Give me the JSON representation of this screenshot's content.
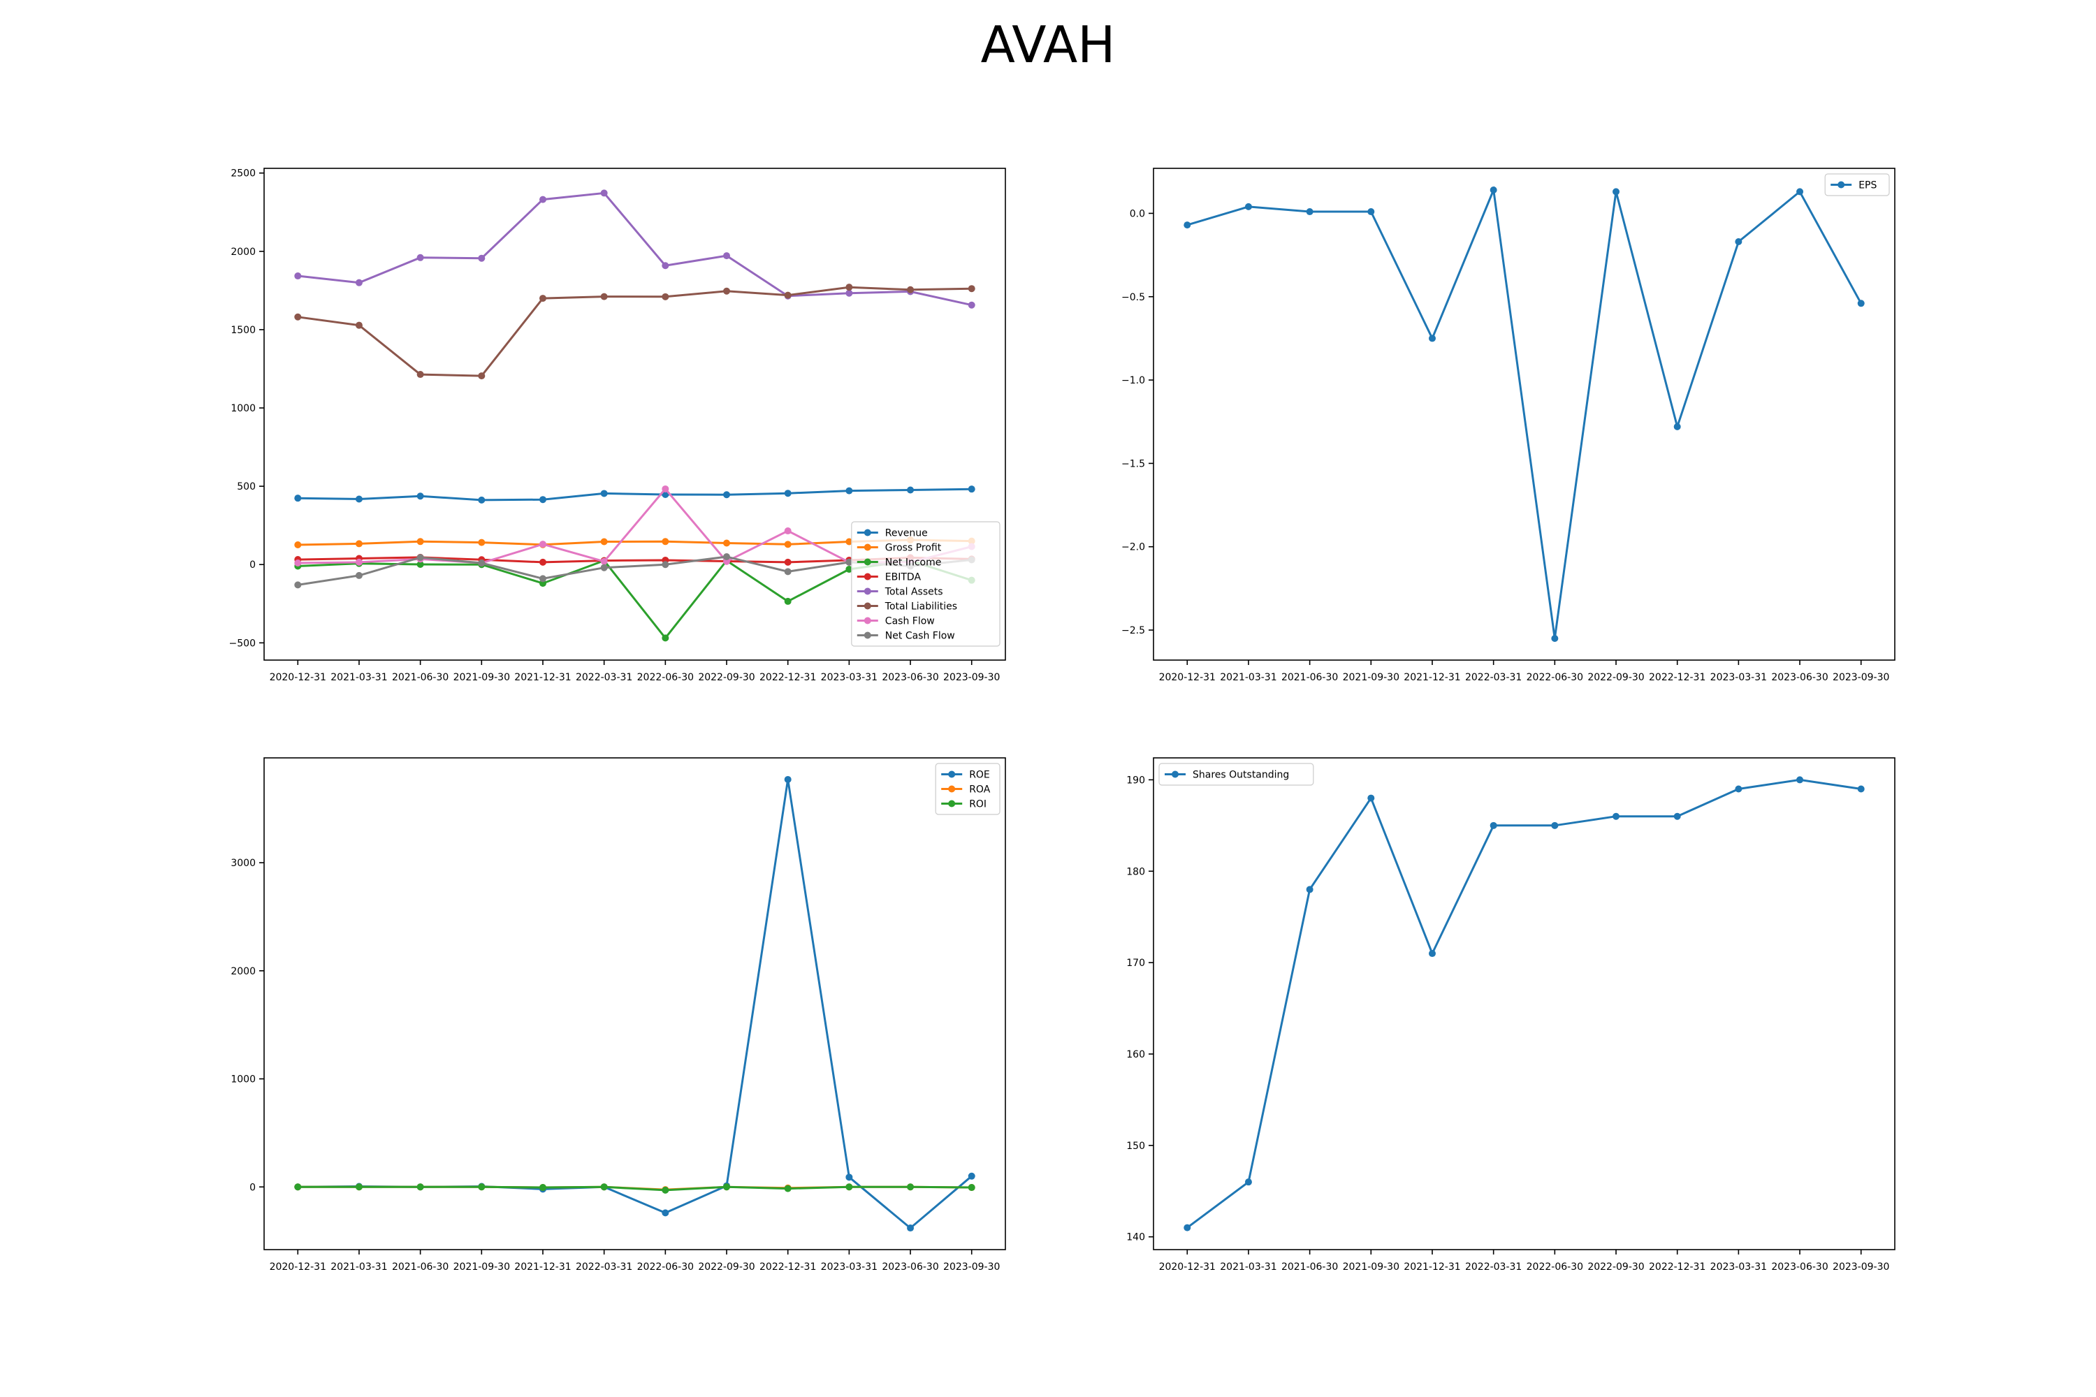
{
  "title": "AVAH",
  "colors": {
    "blue": "#1f77b4",
    "orange": "#ff7f0e",
    "green": "#2ca02c",
    "red": "#d62728",
    "purple": "#9467bd",
    "brown": "#8c564b",
    "pink": "#e377c2",
    "gray": "#7f7f7f"
  },
  "chart_data": [
    {
      "type": "line",
      "legend_position": "center-right",
      "x": [
        "2020-12-31",
        "2021-03-31",
        "2021-06-30",
        "2021-09-30",
        "2021-12-31",
        "2022-03-31",
        "2022-06-30",
        "2022-09-30",
        "2022-12-31",
        "2023-03-31",
        "2023-06-30",
        "2023-09-30"
      ],
      "ylim": [
        -610,
        2530
      ],
      "yticks": [
        -500,
        0,
        500,
        1000,
        1500,
        2000,
        2500
      ],
      "ytick_labels": [
        "−500",
        "0",
        "500",
        "1000",
        "1500",
        "2000",
        "2500"
      ],
      "series": [
        {
          "name": "Revenue",
          "color": "#1f77b4",
          "values": [
            424,
            418,
            437,
            412,
            415,
            454,
            447,
            446,
            455,
            471,
            476,
            482
          ]
        },
        {
          "name": "Gross Profit",
          "color": "#ff7f0e",
          "values": [
            126,
            133,
            147,
            141,
            127,
            146,
            147,
            137,
            129,
            146,
            157,
            150
          ]
        },
        {
          "name": "Net Income",
          "color": "#2ca02c",
          "values": [
            -10,
            7,
            1,
            0,
            -120,
            25,
            -469,
            25,
            -235,
            -30,
            25,
            -100
          ]
        },
        {
          "name": "EBITDA",
          "color": "#d62728",
          "values": [
            32,
            39,
            46,
            31,
            15,
            25,
            28,
            21,
            15,
            28,
            44,
            35
          ]
        },
        {
          "name": "Total Assets",
          "color": "#9467bd",
          "values": [
            1843,
            1800,
            1960,
            1956,
            2331,
            2372,
            1909,
            1972,
            1715,
            1733,
            1743,
            1657
          ]
        },
        {
          "name": "Total Liabilities",
          "color": "#8c564b",
          "values": [
            1581,
            1528,
            1214,
            1205,
            1700,
            1711,
            1710,
            1746,
            1720,
            1771,
            1755,
            1762
          ]
        },
        {
          "name": "Cash Flow",
          "color": "#e377c2",
          "values": [
            10,
            15,
            35,
            10,
            130,
            20,
            483,
            20,
            215,
            15,
            15,
            115
          ]
        },
        {
          "name": "Net Cash Flow",
          "color": "#7f7f7f",
          "values": [
            -130,
            -70,
            45,
            10,
            -90,
            -20,
            0,
            50,
            -45,
            15,
            -10,
            30
          ]
        }
      ]
    },
    {
      "type": "line",
      "legend_position": "upper right",
      "x": [
        "2020-12-31",
        "2021-03-31",
        "2021-06-30",
        "2021-09-30",
        "2021-12-31",
        "2022-03-31",
        "2022-06-30",
        "2022-09-30",
        "2022-12-31",
        "2023-03-31",
        "2023-06-30",
        "2023-09-30"
      ],
      "ylim": [
        -2.68,
        0.27
      ],
      "yticks": [
        0.0,
        -0.5,
        -1.0,
        -1.5,
        -2.0,
        -2.5
      ],
      "ytick_labels": [
        "0.0",
        "−0.5",
        "−1.0",
        "−1.5",
        "−2.0",
        "−2.5"
      ],
      "series": [
        {
          "name": "EPS",
          "color": "#1f77b4",
          "values": [
            -0.07,
            0.04,
            0.01,
            0.01,
            -0.75,
            0.14,
            -2.55,
            0.13,
            -1.28,
            -0.17,
            0.13,
            -0.54
          ]
        }
      ]
    },
    {
      "type": "line",
      "legend_position": "upper right",
      "x": [
        "2020-12-31",
        "2021-03-31",
        "2021-06-30",
        "2021-09-30",
        "2021-12-31",
        "2022-03-31",
        "2022-06-30",
        "2022-09-30",
        "2022-12-31",
        "2023-03-31",
        "2023-06-30",
        "2023-09-30"
      ],
      "ylim": [
        -580,
        3970
      ],
      "yticks": [
        0,
        1000,
        2000,
        3000
      ],
      "ytick_labels": [
        "0",
        "1000",
        "2000",
        "3000"
      ],
      "series": [
        {
          "name": "ROE",
          "color": "#1f77b4",
          "values": [
            0,
            5,
            0,
            5,
            -20,
            0,
            -240,
            10,
            3770,
            90,
            -380,
            100
          ]
        },
        {
          "name": "ROA",
          "color": "#ff7f0e",
          "values": [
            0,
            0,
            0,
            0,
            -5,
            0,
            -25,
            0,
            -10,
            0,
            0,
            -5
          ]
        },
        {
          "name": "ROI",
          "color": "#2ca02c",
          "values": [
            0,
            0,
            0,
            0,
            -5,
            0,
            -30,
            0,
            -15,
            0,
            0,
            -5
          ]
        }
      ]
    },
    {
      "type": "line",
      "legend_position": "upper left",
      "x": [
        "2020-12-31",
        "2021-03-31",
        "2021-06-30",
        "2021-09-30",
        "2021-12-31",
        "2022-03-31",
        "2022-06-30",
        "2022-09-30",
        "2022-12-31",
        "2023-03-31",
        "2023-06-30",
        "2023-09-30"
      ],
      "ylim": [
        138.6,
        192.4
      ],
      "yticks": [
        140,
        150,
        160,
        170,
        180,
        190
      ],
      "ytick_labels": [
        "140",
        "150",
        "160",
        "170",
        "180",
        "190"
      ],
      "series": [
        {
          "name": "Shares Outstanding",
          "color": "#1f77b4",
          "values": [
            141,
            146,
            178,
            188,
            171,
            185,
            185,
            186,
            186,
            189,
            190,
            189
          ]
        }
      ]
    }
  ]
}
